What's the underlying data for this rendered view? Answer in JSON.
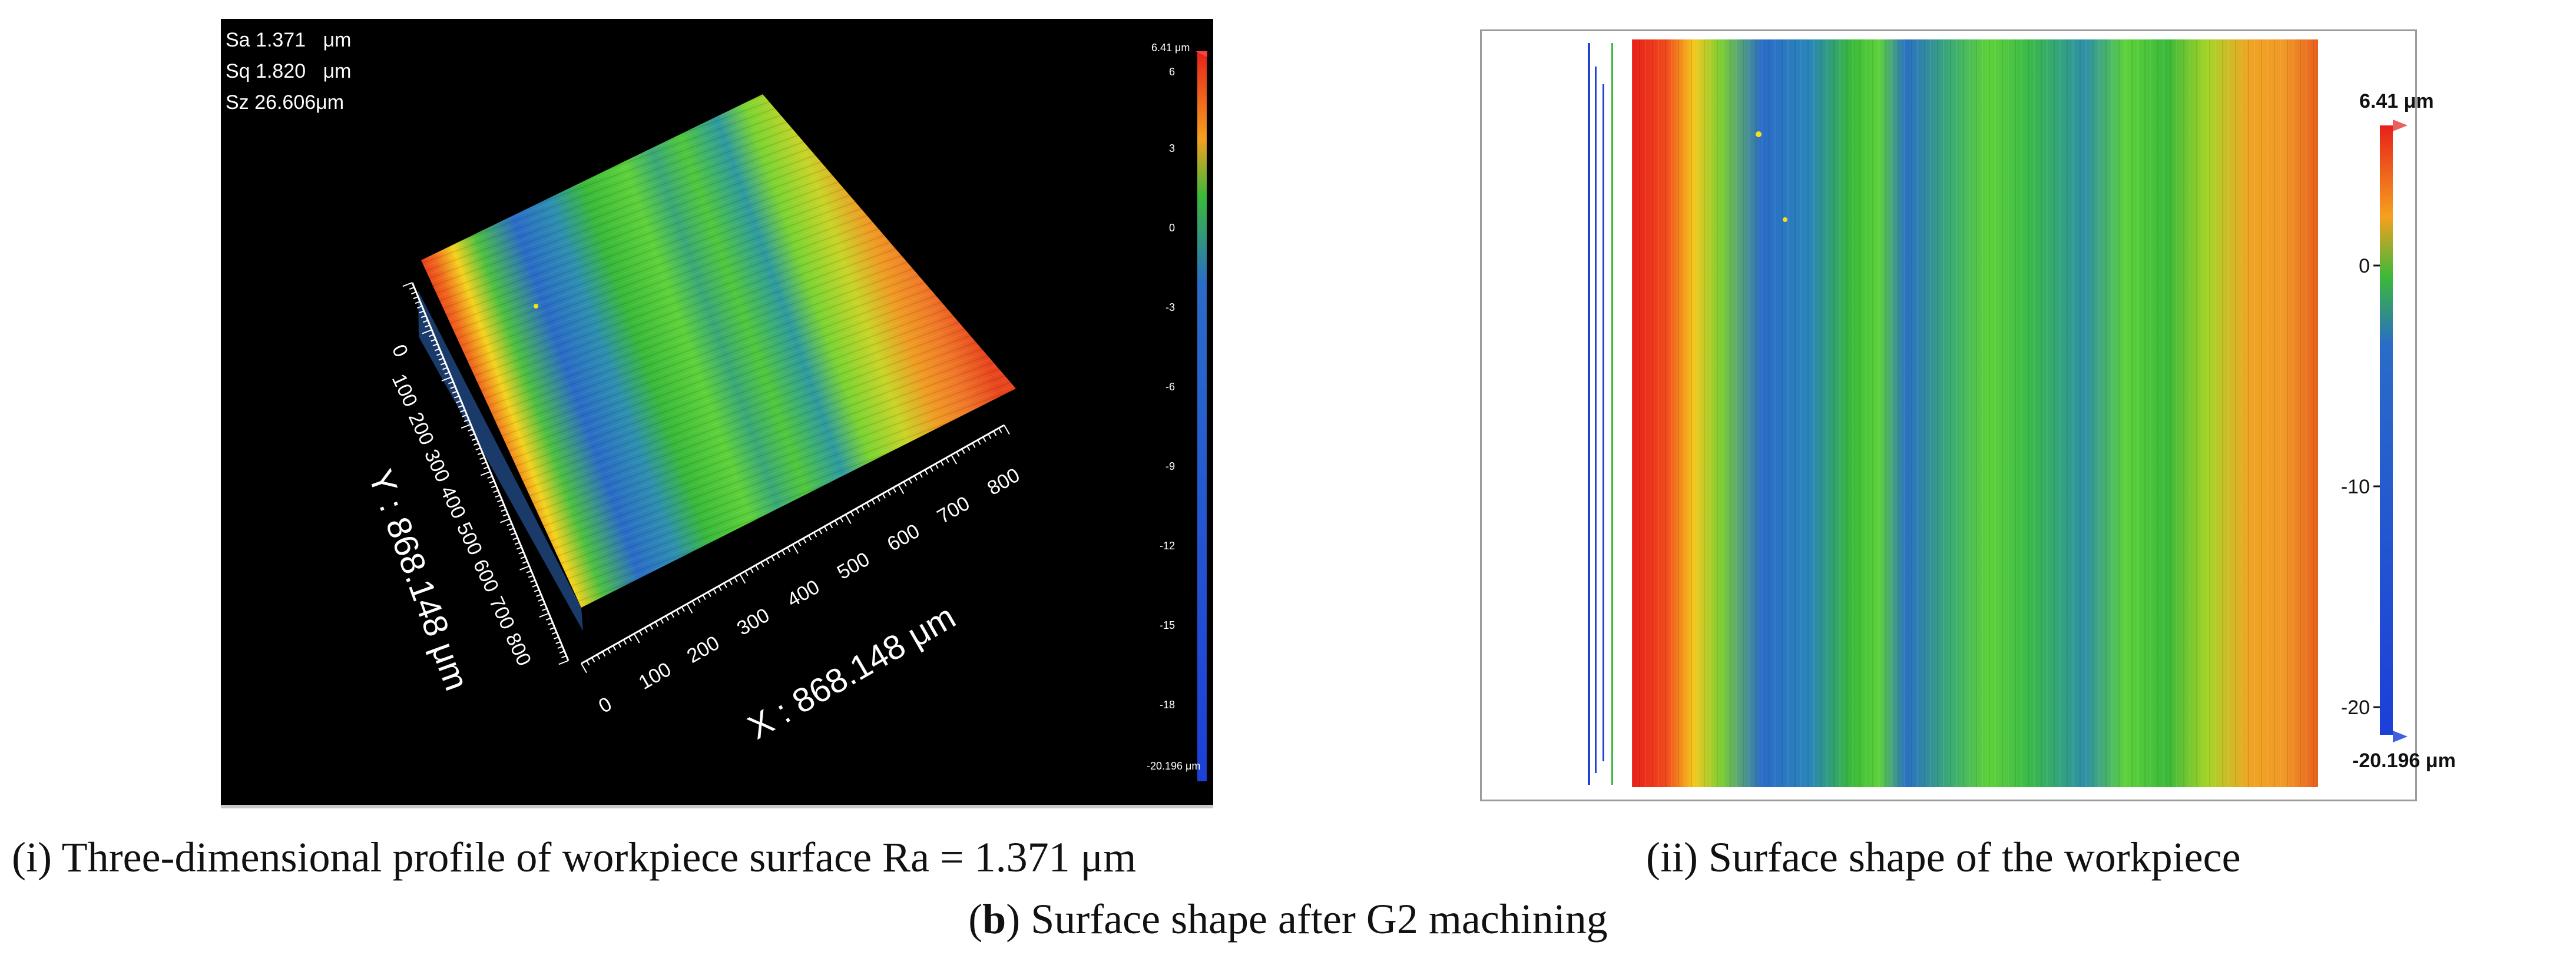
{
  "left_panel": {
    "stats": [
      {
        "label": "Sa",
        "value": "1.371",
        "unit": "μm"
      },
      {
        "label": "Sq",
        "value": "1.820",
        "unit": "μm"
      },
      {
        "label": "Sz",
        "value": "26.606",
        "unit": "μm"
      }
    ],
    "x_axis": {
      "label": "X : 868.148 μm",
      "ticks": [
        "0",
        "100",
        "200",
        "300",
        "400",
        "500",
        "600",
        "700",
        "800"
      ]
    },
    "y_axis": {
      "label": "Y : 868.148 μm",
      "ticks": [
        "0",
        "100",
        "200",
        "300",
        "400",
        "500",
        "600",
        "700",
        "800"
      ]
    },
    "colorbar": {
      "max_label": "6.41 μm",
      "min_label": "-20.196 μm",
      "ticks": [
        "6",
        "3",
        "0",
        "-3",
        "-6",
        "-9",
        "-12",
        "-15",
        "-18"
      ]
    }
  },
  "right_panel": {
    "colorbar": {
      "max_label": "6.41 μm",
      "min_label": "-20.196 μm",
      "ticks": [
        "0",
        "-10",
        "-20"
      ]
    }
  },
  "colors": {
    "high": "#e8201a",
    "mid_high": "#f5d21e",
    "mid": "#3ab93a",
    "low": "#2a6cc8"
  },
  "captions": {
    "left": "(i) Three-dimensional profile of workpiece surface Ra = 1.371 μm",
    "right": "(ii) Surface shape of the workpiece",
    "bottom_prefix": "(",
    "bottom_bold": "b",
    "bottom_rest": ") Surface shape after G2 machining"
  }
}
